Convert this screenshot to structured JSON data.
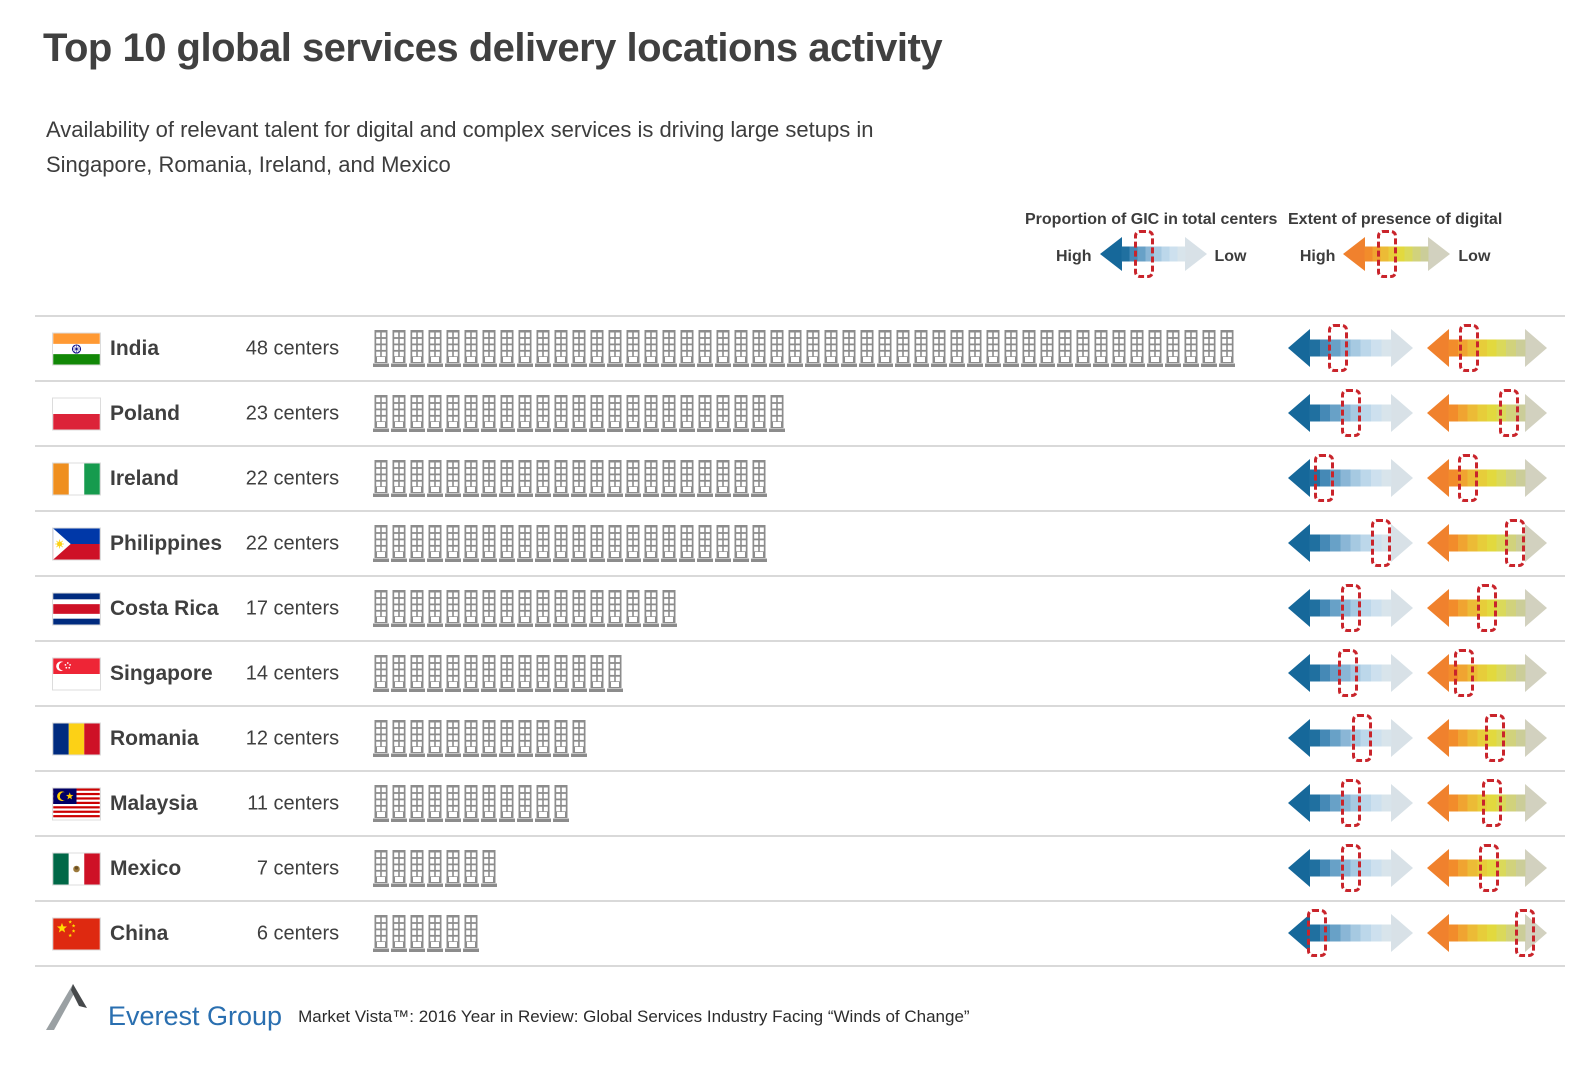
{
  "title": "Top 10 global services delivery locations activity",
  "subtitle_line1": "Availability of relevant talent for digital and complex services is driving large setups in",
  "subtitle_line2": "Singapore, Romania, Ireland, and Mexico",
  "legends": [
    {
      "title": "Proportion of GIC in total centers",
      "high": "High",
      "low": "Low",
      "kind": "gic",
      "marker": 0.42
    },
    {
      "title": "Extent of presence of digital",
      "high": "High",
      "low": "Low",
      "kind": "digital",
      "marker": 0.41
    }
  ],
  "rows": [
    {
      "country": "India",
      "flag": "india",
      "centers_num": "48",
      "centers_word": "centers",
      "buildings": 48,
      "gic_marker": 0.4,
      "digital_marker": 0.35
    },
    {
      "country": "Poland",
      "flag": "poland",
      "centers_num": "23",
      "centers_word": "centers",
      "buildings": 23,
      "gic_marker": 0.5,
      "digital_marker": 0.68
    },
    {
      "country": "Ireland",
      "flag": "ireland",
      "centers_num": "22",
      "centers_word": "centers",
      "buildings": 22,
      "gic_marker": 0.29,
      "digital_marker": 0.34
    },
    {
      "country": "Philippines",
      "flag": "philippines",
      "centers_num": "22",
      "centers_word": "centers",
      "buildings": 22,
      "gic_marker": 0.74,
      "digital_marker": 0.73
    },
    {
      "country": "Costa Rica",
      "flag": "costarica",
      "centers_num": "17",
      "centers_word": "centers",
      "buildings": 17,
      "gic_marker": 0.5,
      "digital_marker": 0.5
    },
    {
      "country": "Singapore",
      "flag": "singapore",
      "centers_num": "14",
      "centers_word": "centers",
      "buildings": 14,
      "gic_marker": 0.48,
      "digital_marker": 0.31
    },
    {
      "country": "Romania",
      "flag": "romania",
      "centers_num": "12",
      "centers_word": "centers",
      "buildings": 12,
      "gic_marker": 0.59,
      "digital_marker": 0.57
    },
    {
      "country": "Malaysia",
      "flag": "malaysia",
      "centers_num": "11",
      "centers_word": "centers",
      "buildings": 11,
      "gic_marker": 0.5,
      "digital_marker": 0.54
    },
    {
      "country": "Mexico",
      "flag": "mexico",
      "centers_num": "7",
      "centers_word": "centers",
      "buildings": 7,
      "gic_marker": 0.5,
      "digital_marker": 0.52
    },
    {
      "country": "China",
      "flag": "china",
      "centers_num": "6",
      "centers_word": "centers",
      "buildings": 6,
      "gic_marker": 0.23,
      "digital_marker": 0.82
    }
  ],
  "footer": {
    "brand": "Everest Group",
    "source": "Market Vista™: 2016 Year in Review: Global Services Industry Facing “Winds of Change”"
  },
  "colors": {
    "gic_high_blue": "#16689a",
    "gic_low_blue": "#d8e4eb",
    "digital_high_orange": "#f0812d",
    "digital_mid_yellow": "#e2d93e",
    "digital_low_gray": "#d2d1bf",
    "marker_red": "#c9242b",
    "building_gray": "#8c8c8c",
    "separator_gray": "#d9d9d9",
    "brand_blue": "#2a6fb0",
    "text_dark": "#3f3f3f"
  },
  "icons": {
    "building": "building-icon",
    "gic_arrow": "gic-gradient-arrow",
    "digital_arrow": "digital-gradient-arrow",
    "marker": "red-dashed-position-marker",
    "logo": "everest-mountain-logo-icon"
  },
  "chart_data": {
    "type": "bar",
    "title": "Top 10 global services delivery locations activity",
    "subtitle": "Availability of relevant talent for digital and complex services is driving large setups in Singapore, Romania, Ireland, and Mexico",
    "categories": [
      "India",
      "Poland",
      "Ireland",
      "Philippines",
      "Costa Rica",
      "Singapore",
      "Romania",
      "Malaysia",
      "Mexico",
      "China"
    ],
    "values": [
      48,
      23,
      22,
      22,
      17,
      14,
      12,
      11,
      7,
      6
    ],
    "unit": "centers",
    "series": [
      {
        "name": "Delivery centers (pictogram count)",
        "values": [
          48,
          23,
          22,
          22,
          17,
          14,
          12,
          11,
          7,
          6
        ]
      },
      {
        "name": "Proportion of GIC in total centers (0=High, 1=Low)",
        "values": [
          0.4,
          0.5,
          0.29,
          0.74,
          0.5,
          0.48,
          0.59,
          0.5,
          0.5,
          0.23
        ]
      },
      {
        "name": "Extent of presence of digital (0=High, 1=Low)",
        "values": [
          0.35,
          0.68,
          0.34,
          0.73,
          0.5,
          0.31,
          0.57,
          0.54,
          0.52,
          0.82
        ]
      }
    ],
    "legend_position": "top-right",
    "grid": false,
    "source": "Everest Group — Market Vista™: 2016 Year in Review: Global Services Industry Facing “Winds of Change”"
  }
}
